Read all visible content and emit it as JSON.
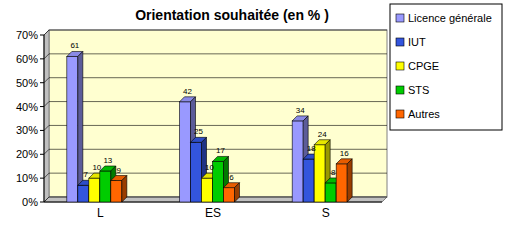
{
  "chart_data": {
    "type": "bar",
    "title": "Orientation souhaitée (en % )",
    "categories": [
      "L",
      "ES",
      "S"
    ],
    "series": [
      {
        "name": "Licence générale",
        "color": "#9999ff",
        "values": [
          61,
          42,
          34
        ]
      },
      {
        "name": "IUT",
        "color": "#3355dd",
        "values": [
          7,
          25,
          18
        ]
      },
      {
        "name": "CPGE",
        "color": "#ffff00",
        "values": [
          10,
          10,
          24
        ]
      },
      {
        "name": "STS",
        "color": "#00cc00",
        "values": [
          13,
          17,
          8
        ]
      },
      {
        "name": "Autres",
        "color": "#ff6600",
        "values": [
          9,
          6,
          16
        ]
      }
    ],
    "ylim": [
      0,
      70
    ],
    "yticks": [
      {
        "value": 0,
        "label": "0%"
      },
      {
        "value": 10,
        "label": "10%"
      },
      {
        "value": 20,
        "label": "20%"
      },
      {
        "value": 30,
        "label": "30%"
      },
      {
        "value": 40,
        "label": "40%"
      },
      {
        "value": 50,
        "label": "50%"
      },
      {
        "value": 60,
        "label": "60%"
      },
      {
        "value": 70,
        "label": "70%"
      }
    ],
    "grid": true,
    "legend": "right",
    "data_labels": true
  }
}
